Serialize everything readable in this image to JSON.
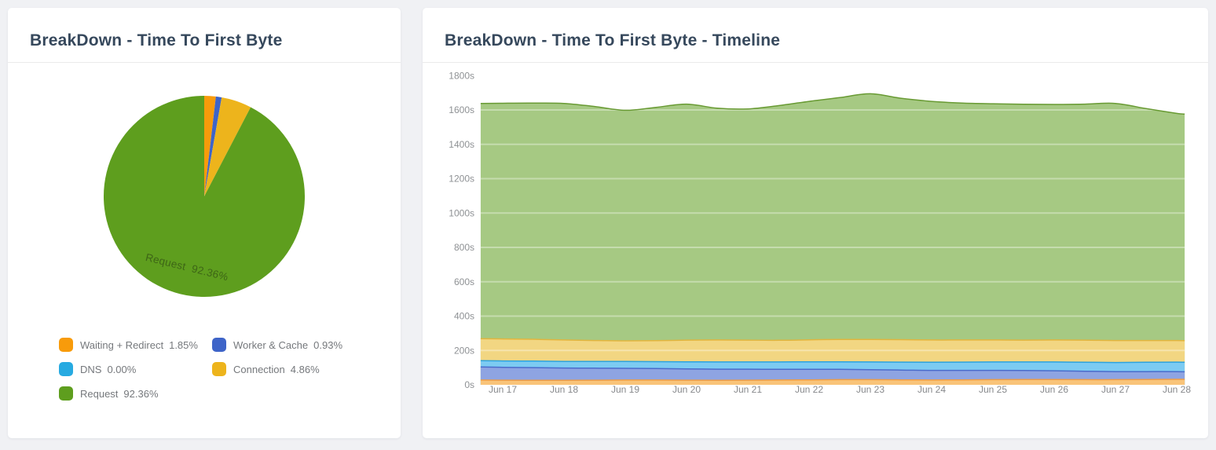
{
  "page": {
    "background": "#F0F1F4",
    "card_background": "#FFFFFF"
  },
  "cards": {
    "pie": {
      "title": "BreakDown - Time To First Byte"
    },
    "timeline": {
      "title": "BreakDown - Time To First Byte - Timeline"
    }
  },
  "chart_data": [
    {
      "id": "ttfb-breakdown-pie",
      "type": "pie",
      "title": "BreakDown - Time To First Byte",
      "legend_position": "bottom-left-two-columns",
      "inside_label_series": "Request",
      "series": [
        {
          "name": "Waiting + Redirect",
          "pct": 1.85,
          "color": "#F89B0B"
        },
        {
          "name": "Worker & Cache",
          "pct": 0.93,
          "color": "#3E64C8"
        },
        {
          "name": "DNS",
          "pct": 0.0,
          "color": "#27AAE1"
        },
        {
          "name": "Connection",
          "pct": 4.86,
          "color": "#EDB41C"
        },
        {
          "name": "Request",
          "pct": 92.36,
          "color": "#5E9E1E"
        }
      ]
    },
    {
      "id": "ttfb-timeline",
      "type": "area",
      "stacked": true,
      "title": "BreakDown - Time To First Byte - Timeline",
      "grid": "subtle-white-horizontal-lines",
      "ylim": [
        0,
        1800
      ],
      "y_ticks": [
        0,
        200,
        400,
        600,
        800,
        1000,
        1200,
        1400,
        1600,
        1800
      ],
      "y_tick_suffix": "s",
      "x_tick_labels": [
        "Jun 17",
        "Jun 18",
        "Jun 19",
        "Jun 20",
        "Jun 21",
        "Jun 22",
        "Jun 23",
        "Jun 24",
        "Jun 25",
        "Jun 26",
        "Jun 27",
        "Jun 28"
      ],
      "x_days": [
        -0.36,
        0,
        0.5,
        1,
        1.5,
        2,
        2.5,
        3,
        3.5,
        4,
        4.5,
        5,
        5.5,
        6,
        6.5,
        7,
        7.5,
        8,
        8.5,
        9,
        9.5,
        10,
        10.5,
        11,
        11.13
      ],
      "series": [
        {
          "name": "Waiting + Redirect",
          "color": "#EE9D46",
          "fill": "#F9C479",
          "values": [
            28,
            27,
            26,
            26,
            27,
            28,
            28,
            27,
            26,
            27,
            28,
            29,
            30,
            30,
            29,
            28,
            29,
            30,
            31,
            31,
            30,
            30,
            31,
            32,
            32
          ]
        },
        {
          "name": "Worker & Cache",
          "color": "#4A6BCB",
          "fill": "#8EA4E2",
          "values": [
            76,
            75,
            74,
            72,
            70,
            68,
            67,
            66,
            65,
            64,
            62,
            61,
            60,
            58,
            57,
            56,
            55,
            54,
            52,
            51,
            49,
            47,
            46,
            45,
            44
          ]
        },
        {
          "name": "DNS",
          "color": "#2CA3DE",
          "fill": "#7CCBF2",
          "values": [
            37,
            37,
            38,
            38,
            39,
            40,
            40,
            41,
            42,
            42,
            43,
            44,
            44,
            45,
            46,
            47,
            48,
            49,
            50,
            51,
            52,
            53,
            54,
            55,
            55
          ]
        },
        {
          "name": "Connection",
          "color": "#E2B53E",
          "fill": "#F2D682",
          "values": [
            128,
            128,
            127,
            125,
            122,
            120,
            122,
            126,
            128,
            127,
            126,
            128,
            130,
            131,
            131,
            130,
            129,
            128,
            127,
            128,
            129,
            128,
            127,
            126,
            126
          ]
        },
        {
          "name": "Request",
          "color": "#689A33",
          "fill": "#A6C983",
          "values": [
            1369,
            1372,
            1375,
            1377,
            1362,
            1342,
            1358,
            1374,
            1349,
            1346,
            1366,
            1388,
            1408,
            1430,
            1405,
            1389,
            1379,
            1375,
            1373,
            1371,
            1374,
            1380,
            1350,
            1322,
            1319
          ]
        }
      ]
    }
  ]
}
